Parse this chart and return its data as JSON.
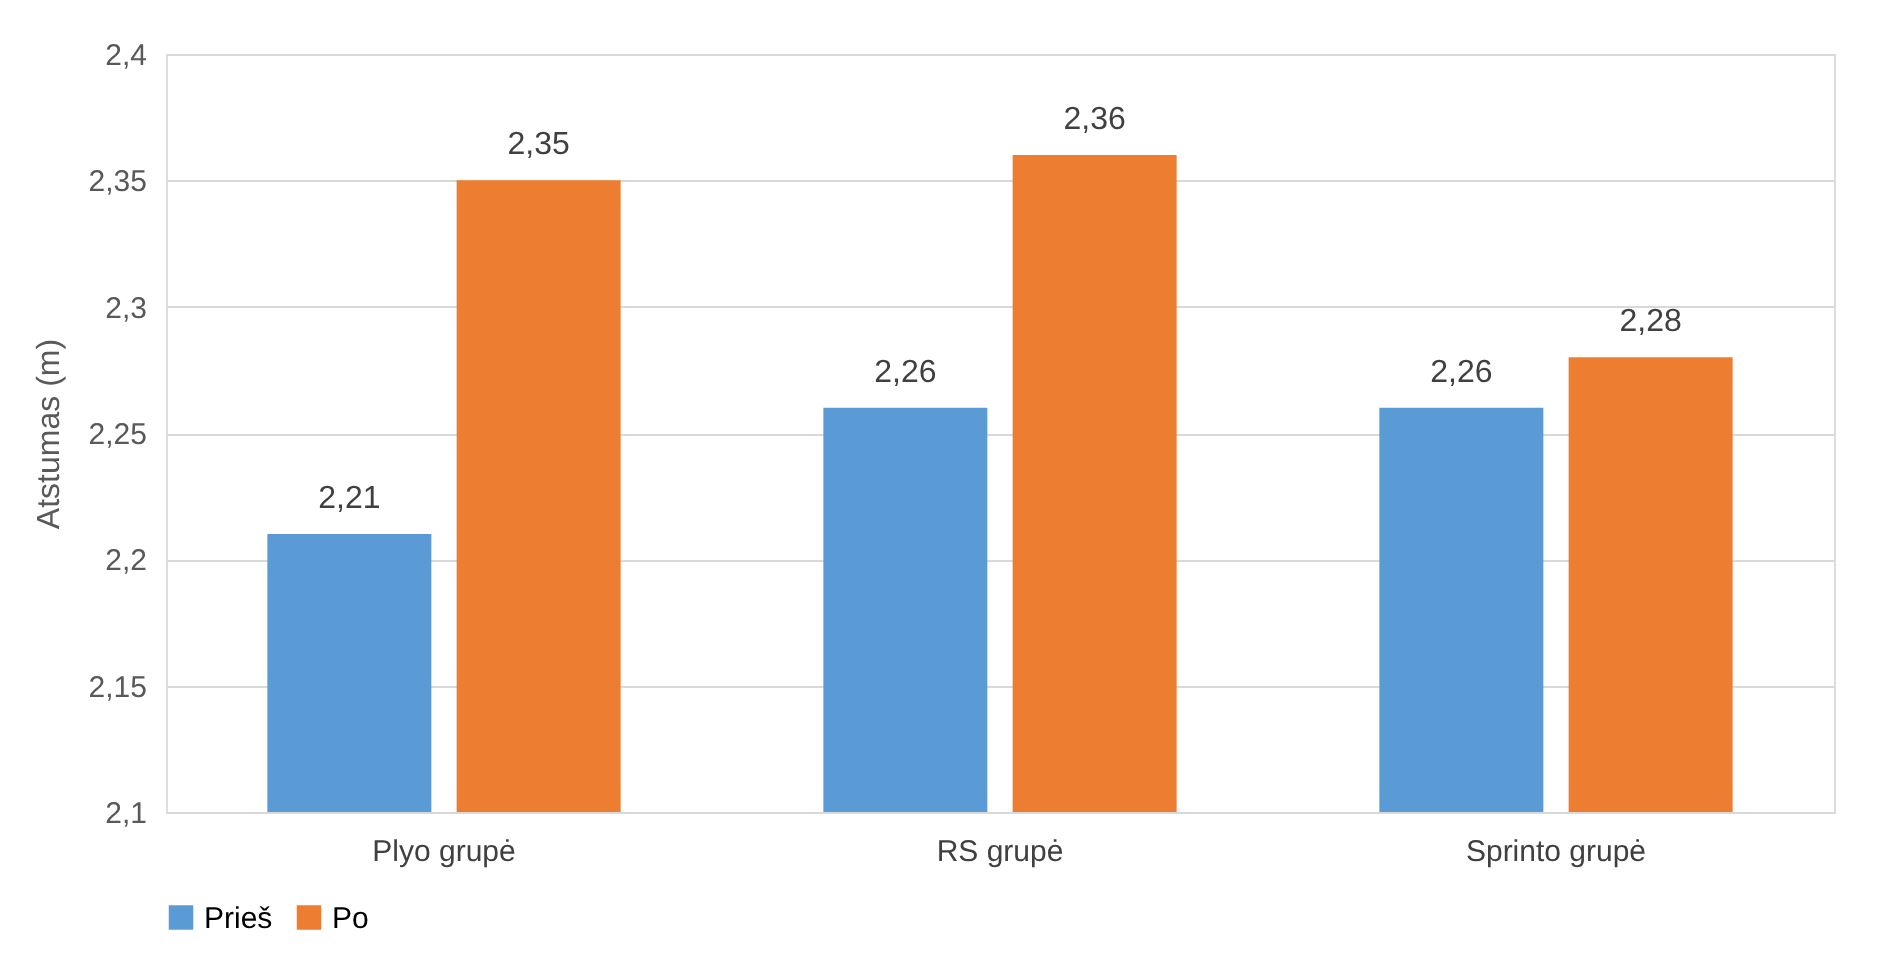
{
  "chart_data": {
    "type": "bar",
    "ylabel": "Atstumas (m)",
    "categories": [
      "Plyo grupė",
      "RS grupė",
      "Sprinto grupė"
    ],
    "series": [
      {
        "name": "Prieš",
        "color": "#5b9bd5",
        "values": [
          2.21,
          2.26,
          2.26
        ],
        "value_labels": [
          "2,21",
          "2,26",
          "2,26"
        ]
      },
      {
        "name": "Po",
        "color": "#ed7d31",
        "values": [
          2.35,
          2.36,
          2.28
        ],
        "value_labels": [
          "2,35",
          "2,36",
          "2,28"
        ]
      }
    ],
    "ylim": [
      2.1,
      2.4
    ],
    "yticks": [
      {
        "value": 2.1,
        "label": "2,1"
      },
      {
        "value": 2.15,
        "label": "2,15"
      },
      {
        "value": 2.2,
        "label": "2,2"
      },
      {
        "value": 2.25,
        "label": "2,25"
      },
      {
        "value": 2.3,
        "label": "2,3"
      },
      {
        "value": 2.35,
        "label": "2,35"
      },
      {
        "value": 2.4,
        "label": "2,4"
      }
    ],
    "grid": "y",
    "legend": "bottom"
  }
}
